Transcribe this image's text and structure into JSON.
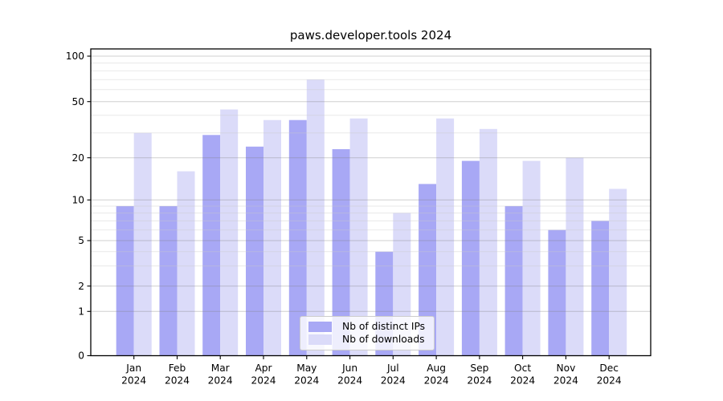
{
  "chart_data": {
    "type": "bar",
    "title": "paws.developer.tools 2024",
    "categories": [
      "Jan",
      "Feb",
      "Mar",
      "Apr",
      "May",
      "Jun",
      "Jul",
      "Aug",
      "Sep",
      "Oct",
      "Nov",
      "Dec"
    ],
    "category_year_sublabel": "2024",
    "series": [
      {
        "name": "Nb of distinct IPs",
        "color": "#a8a8f5",
        "values": [
          9,
          9,
          29,
          24,
          37,
          23,
          4,
          13,
          19,
          9,
          6,
          7
        ]
      },
      {
        "name": "Nb of downloads",
        "color": "#dbdbf9",
        "values": [
          30,
          16,
          44,
          37,
          70,
          38,
          8,
          38,
          32,
          19,
          20,
          12
        ]
      }
    ],
    "xlabel": "",
    "ylabel": "",
    "yaxis": {
      "scale": "symlog",
      "major_ticks": [
        0,
        1,
        2,
        5,
        10,
        20,
        50,
        100
      ],
      "major_tick_labels": [
        "0",
        "1",
        "2",
        "5",
        "10",
        "20",
        "50",
        "100"
      ],
      "minor_ticks": [
        3,
        4,
        6,
        7,
        8,
        9,
        30,
        40,
        60,
        70,
        80,
        90
      ],
      "range": [
        0,
        112
      ]
    },
    "grid": "major-and-minor",
    "legend": {
      "position": "lower center",
      "entries": [
        "Nb of distinct IPs",
        "Nb of downloads"
      ]
    },
    "colors": {
      "background": "#ffffff",
      "axis": "#000000",
      "major_grid": "#d2d2d2",
      "minor_grid": "#eeeeee",
      "text": "#000000"
    }
  }
}
